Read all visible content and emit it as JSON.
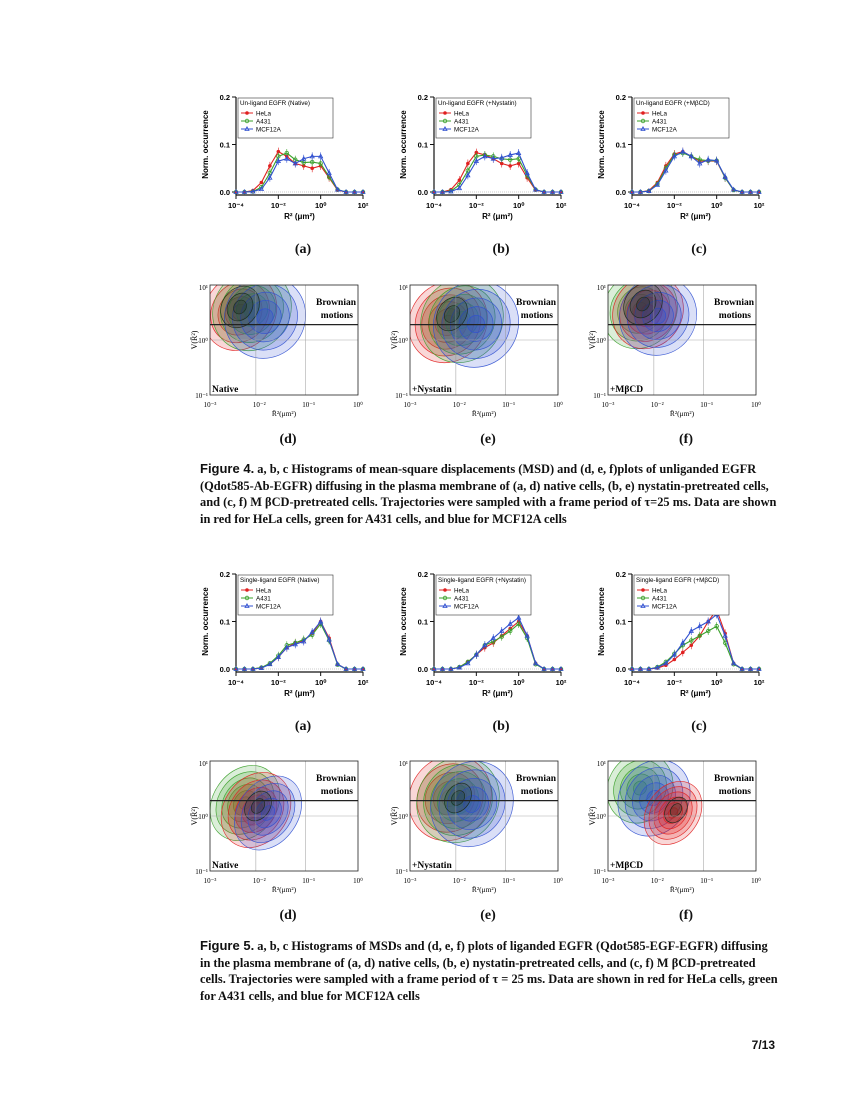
{
  "figure4": {
    "hist_panels": [
      {
        "id": "a",
        "title": "Un-ligand EGFR (Native)",
        "label": "(a)"
      },
      {
        "id": "b",
        "title": "Un-ligand EGFR (+Nystatin)",
        "label": "(b)"
      },
      {
        "id": "c",
        "title": "Un-ligand EGFR (+MβCD)",
        "label": "(c)"
      }
    ],
    "density_panels": [
      {
        "id": "d",
        "condition": "Native",
        "label": "(d)"
      },
      {
        "id": "e",
        "condition": "+Nystatin",
        "label": "(e)"
      },
      {
        "id": "f",
        "condition": "+MβCD",
        "label": "(f)"
      }
    ],
    "caption": {
      "label": "Figure 4.",
      "text": "a, b, c Histograms of mean-square displacements (MSD) and (d, e, f)plots of unliganded EGFR (Qdot585-Ab-EGFR) diffusing in the plasma membrane of (a, d) native cells, (b, e) nystatin-pretreated cells, and (c, f) M βCD-pretreated cells. Trajectories were sampled with a frame period of τ=25 ms. Data are shown in red for HeLa cells, green for A431 cells, and blue for MCF12A cells"
    }
  },
  "figure5": {
    "hist_panels": [
      {
        "id": "a",
        "title": "Single-ligand EGFR (Native)",
        "label": "(a)"
      },
      {
        "id": "b",
        "title": "Single-ligand EGFR (+Nystatin)",
        "label": "(b)"
      },
      {
        "id": "c",
        "title": "Single-ligand EGFR (+MβCD)",
        "label": "(c)"
      }
    ],
    "density_panels": [
      {
        "id": "d",
        "condition": "Native",
        "label": "(d)"
      },
      {
        "id": "e",
        "condition": "+Nystatin",
        "label": "(e)"
      },
      {
        "id": "f",
        "condition": "+MβCD",
        "label": "(f)"
      }
    ],
    "caption": {
      "label": "Figure 5.",
      "text": "a, b, c Histograms of MSDs and (d, e, f) plots of liganded EGFR (Qdot585-EGF-EGFR) diffusing in the plasma membrane of (a, d) native cells, (b, e) nystatin-pretreated cells, and (c, f) M βCD-pretreated cells. Trajectories were sampled with a frame period of τ = 25 ms. Data are shown in red for HeLa cells, green for A431 cells, and blue for MCF12A cells"
    }
  },
  "common": {
    "hist_ylabel": "Norm. occurrence",
    "hist_xlabel": "R² (μm²)",
    "hist_yticks": [
      "0.2",
      "0.1",
      "0.0"
    ],
    "hist_xticks": [
      "10⁻⁴",
      "10⁻²",
      "10⁰",
      "10²"
    ],
    "legend": [
      "HeLa",
      "A431",
      "MCF12A"
    ],
    "density_ylabel": "V(R̄²)",
    "density_xlabel": "R̄²(μm²)",
    "density_yticks": [
      "10¹",
      "10⁰",
      "10⁻¹"
    ],
    "density_xticks": [
      "10⁻³",
      "10⁻²",
      "10⁻¹",
      "10⁰"
    ],
    "brownian_line1": "Brownian",
    "brownian_line2": "motions"
  },
  "colors": {
    "hela": "#e02020",
    "a431": "#3aa02a",
    "mcf12a": "#3050d0"
  },
  "chart_data": [
    {
      "type": "line",
      "title": "Un-ligand EGFR (Native)",
      "xlabel": "R² (μm²)",
      "ylabel": "Norm. occurrence",
      "ylim": [
        0,
        0.2
      ],
      "x": [
        -4,
        -3.6,
        -3.2,
        -2.8,
        -2.4,
        -2.0,
        -1.6,
        -1.2,
        -0.8,
        -0.4,
        0,
        0.4,
        0.8,
        1.2,
        1.6,
        2
      ],
      "series": [
        {
          "name": "HeLa",
          "values": [
            0,
            0,
            0.003,
            0.02,
            0.055,
            0.085,
            0.075,
            0.06,
            0.055,
            0.05,
            0.055,
            0.03,
            0.004,
            0,
            0,
            0
          ]
        },
        {
          "name": "A431",
          "values": [
            0,
            0,
            0.001,
            0.01,
            0.04,
            0.075,
            0.082,
            0.068,
            0.062,
            0.063,
            0.06,
            0.032,
            0.005,
            0,
            0,
            0
          ]
        },
        {
          "name": "MCF12A",
          "values": [
            0,
            0,
            0.001,
            0.006,
            0.03,
            0.065,
            0.07,
            0.06,
            0.07,
            0.075,
            0.075,
            0.04,
            0.005,
            0,
            0,
            0
          ]
        }
      ]
    },
    {
      "type": "line",
      "title": "Un-ligand EGFR (+Nystatin)",
      "xlabel": "R² (μm²)",
      "ylabel": "Norm. occurrence",
      "ylim": [
        0,
        0.2
      ],
      "x": [
        -4,
        -3.6,
        -3.2,
        -2.8,
        -2.4,
        -2.0,
        -1.6,
        -1.2,
        -0.8,
        -0.4,
        0,
        0.4,
        0.8,
        1.2,
        1.6,
        2
      ],
      "series": [
        {
          "name": "HeLa",
          "values": [
            0,
            0,
            0.005,
            0.025,
            0.06,
            0.083,
            0.078,
            0.07,
            0.06,
            0.055,
            0.06,
            0.03,
            0.004,
            0,
            0,
            0
          ]
        },
        {
          "name": "A431",
          "values": [
            0,
            0,
            0.002,
            0.015,
            0.045,
            0.075,
            0.078,
            0.075,
            0.07,
            0.068,
            0.07,
            0.035,
            0.005,
            0,
            0,
            0
          ]
        },
        {
          "name": "MCF12A",
          "values": [
            0,
            0,
            0.001,
            0.008,
            0.035,
            0.065,
            0.075,
            0.07,
            0.072,
            0.078,
            0.082,
            0.04,
            0.005,
            0,
            0,
            0
          ]
        }
      ]
    },
    {
      "type": "line",
      "title": "Un-ligand EGFR (+MβCD)",
      "xlabel": "R² (μm²)",
      "ylabel": "Norm. occurrence",
      "ylim": [
        0,
        0.2
      ],
      "x": [
        -4,
        -3.6,
        -3.2,
        -2.8,
        -2.4,
        -2.0,
        -1.6,
        -1.2,
        -0.8,
        -0.4,
        0,
        0.4,
        0.8,
        1.2,
        1.6,
        2
      ],
      "series": [
        {
          "name": "HeLa",
          "values": [
            0,
            0,
            0.003,
            0.02,
            0.055,
            0.08,
            0.085,
            0.075,
            0.065,
            0.065,
            0.065,
            0.03,
            0.004,
            0,
            0,
            0
          ]
        },
        {
          "name": "A431",
          "values": [
            0,
            0,
            0.002,
            0.017,
            0.05,
            0.078,
            0.082,
            0.075,
            0.068,
            0.066,
            0.066,
            0.03,
            0.004,
            0,
            0,
            0
          ]
        },
        {
          "name": "MCF12A",
          "values": [
            0,
            0,
            0.002,
            0.015,
            0.045,
            0.075,
            0.085,
            0.075,
            0.06,
            0.068,
            0.066,
            0.032,
            0.005,
            0,
            0,
            0
          ]
        }
      ]
    },
    {
      "type": "line",
      "title": "Single-ligand EGFR (Native)",
      "xlabel": "R² (μm²)",
      "ylabel": "Norm. occurrence",
      "ylim": [
        0,
        0.2
      ],
      "x": [
        -4,
        -3.6,
        -3.2,
        -2.8,
        -2.4,
        -2.0,
        -1.6,
        -1.2,
        -0.8,
        -0.4,
        0,
        0.4,
        0.8,
        1.2,
        1.6,
        2
      ],
      "series": [
        {
          "name": "HeLa",
          "values": [
            0,
            0,
            0,
            0.003,
            0.01,
            0.025,
            0.045,
            0.055,
            0.06,
            0.075,
            0.1,
            0.065,
            0.01,
            0,
            0,
            0
          ]
        },
        {
          "name": "A431",
          "values": [
            0,
            0,
            0,
            0.003,
            0.012,
            0.028,
            0.05,
            0.055,
            0.062,
            0.072,
            0.095,
            0.06,
            0.009,
            0,
            0,
            0
          ]
        },
        {
          "name": "MCF12A",
          "values": [
            0,
            0,
            0,
            0.002,
            0.01,
            0.025,
            0.045,
            0.052,
            0.058,
            0.078,
            0.1,
            0.062,
            0.01,
            0,
            0,
            0
          ]
        }
      ]
    },
    {
      "type": "line",
      "title": "Single-ligand EGFR (+Nystatin)",
      "xlabel": "R² (μm²)",
      "ylabel": "Norm. occurrence",
      "ylim": [
        0,
        0.2
      ],
      "x": [
        -4,
        -3.6,
        -3.2,
        -2.8,
        -2.4,
        -2.0,
        -1.6,
        -1.2,
        -0.8,
        -0.4,
        0,
        0.4,
        0.8,
        1.2,
        1.6,
        2
      ],
      "series": [
        {
          "name": "HeLa",
          "values": [
            0,
            0,
            0,
            0.004,
            0.015,
            0.03,
            0.045,
            0.055,
            0.07,
            0.085,
            0.1,
            0.07,
            0.012,
            0,
            0,
            0
          ]
        },
        {
          "name": "A431",
          "values": [
            0,
            0,
            0,
            0.004,
            0.015,
            0.03,
            0.05,
            0.058,
            0.068,
            0.08,
            0.095,
            0.065,
            0.01,
            0,
            0,
            0
          ]
        },
        {
          "name": "MCF12A",
          "values": [
            0,
            0,
            0,
            0.003,
            0.012,
            0.03,
            0.05,
            0.065,
            0.08,
            0.095,
            0.108,
            0.07,
            0.012,
            0,
            0,
            0
          ]
        }
      ]
    },
    {
      "type": "line",
      "title": "Single-ligand EGFR (+MβCD)",
      "xlabel": "R² (μm²)",
      "ylabel": "Norm. occurrence",
      "ylim": [
        0,
        0.2
      ],
      "x": [
        -4,
        -3.6,
        -3.2,
        -2.8,
        -2.4,
        -2.0,
        -1.6,
        -1.2,
        -0.8,
        -0.4,
        0,
        0.4,
        0.8,
        1.2,
        1.6,
        2
      ],
      "series": [
        {
          "name": "HeLa",
          "values": [
            0,
            0,
            0,
            0.002,
            0.008,
            0.02,
            0.035,
            0.05,
            0.07,
            0.1,
            0.125,
            0.075,
            0.012,
            0,
            0,
            0
          ]
        },
        {
          "name": "A431",
          "values": [
            0,
            0,
            0,
            0.004,
            0.015,
            0.032,
            0.05,
            0.06,
            0.07,
            0.08,
            0.09,
            0.055,
            0.01,
            0,
            0,
            0
          ]
        },
        {
          "name": "MCF12A",
          "values": [
            0,
            0,
            0,
            0.003,
            0.012,
            0.03,
            0.055,
            0.08,
            0.09,
            0.1,
            0.115,
            0.07,
            0.012,
            0,
            0,
            0
          ]
        }
      ]
    }
  ]
}
